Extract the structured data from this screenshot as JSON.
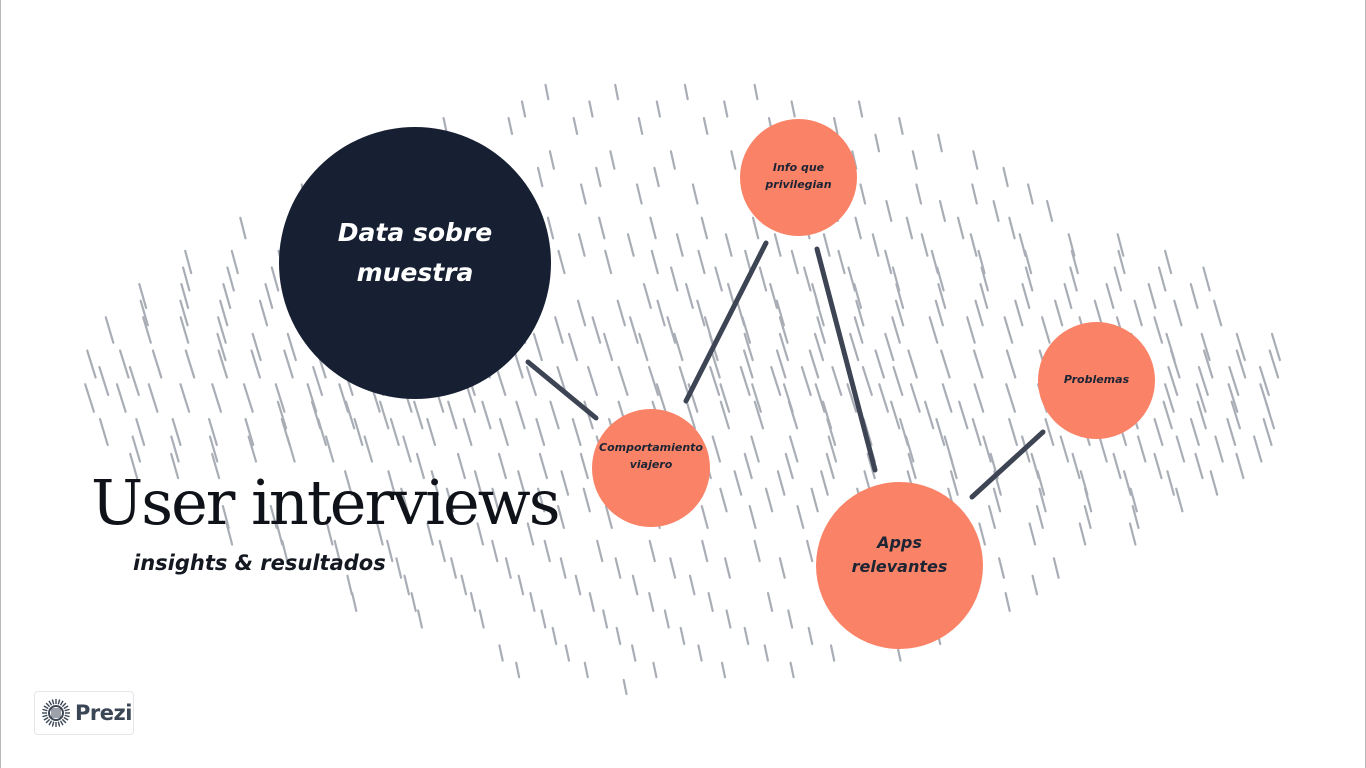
{
  "slide": {
    "title": "User interviews",
    "subtitle": "insights & resultados"
  },
  "topics": {
    "data_sobre_muestra": "Data sobre muestra",
    "info_que_privilegian": "Info que privilegian",
    "comportamiento_viajero": "Comportamiento viajero",
    "apps_relevantes": "Apps relevantes",
    "problemas": "Problemas"
  },
  "branding": {
    "logo_text": "Prezi",
    "logo_icon": "prezi-logo-icon"
  },
  "colors": {
    "background": "#ffffff",
    "dark_circle": "#172033",
    "accent_circle": "#fa8266",
    "connector": "#3d4453",
    "hatch_pattern": "#a9aeb6"
  }
}
